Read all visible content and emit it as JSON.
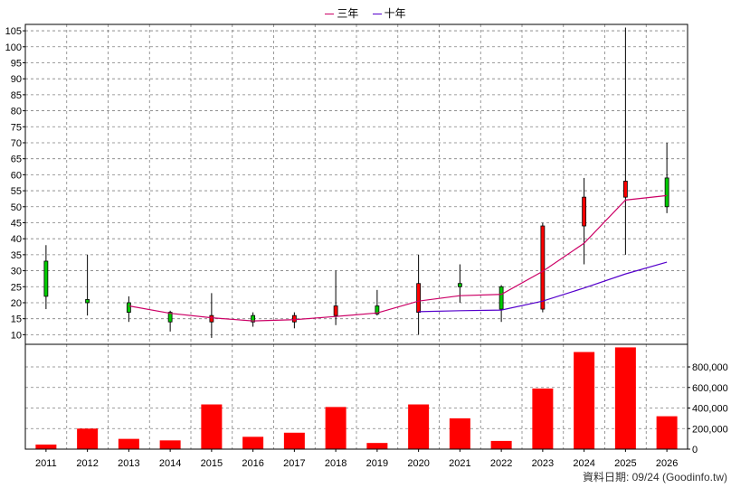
{
  "legend": [
    {
      "name": "三年",
      "color": "#cc0066"
    },
    {
      "name": "十年",
      "color": "#5500cc"
    }
  ],
  "footer": "資料日期: 09/24 (Goodinfo.tw)",
  "colors": {
    "up": "#ff0000",
    "down": "#00cc00",
    "volume": "#ff0000",
    "ma3": "#cc0066",
    "ma10": "#5500cc",
    "grid": "#808080"
  },
  "chart_data": [
    {
      "type": "candlestick",
      "categories": [
        "2011",
        "2012",
        "2013",
        "2014",
        "2015",
        "2016",
        "2017",
        "2018",
        "2019",
        "2020",
        "2021",
        "2022",
        "2023",
        "2024",
        "2025",
        "2026"
      ],
      "y_ticks": [
        10,
        15,
        20,
        25,
        30,
        35,
        40,
        45,
        50,
        55,
        60,
        65,
        70,
        75,
        80,
        85,
        90,
        95,
        100,
        105
      ],
      "ylim": [
        7,
        107
      ],
      "grid": true,
      "candles": [
        {
          "open": 33,
          "high": 38,
          "low": 18,
          "close": 22,
          "color": "green"
        },
        {
          "open": 21,
          "high": 35,
          "low": 16,
          "close": 20,
          "color": "green"
        },
        {
          "open": 20,
          "high": 22,
          "low": 14,
          "close": 17,
          "color": "green"
        },
        {
          "open": 17,
          "high": 17.5,
          "low": 11,
          "close": 14,
          "color": "green"
        },
        {
          "open": 14,
          "high": 23,
          "low": 9,
          "close": 16,
          "color": "red"
        },
        {
          "open": 16,
          "high": 17,
          "low": 12.5,
          "close": 14,
          "color": "green"
        },
        {
          "open": 14,
          "high": 17,
          "low": 12,
          "close": 16,
          "color": "red"
        },
        {
          "open": 16,
          "high": 30,
          "low": 13,
          "close": 19,
          "color": "red"
        },
        {
          "open": 19,
          "high": 24,
          "low": 16,
          "close": 16.5,
          "color": "green"
        },
        {
          "open": 17,
          "high": 35,
          "low": 10,
          "close": 26,
          "color": "red"
        },
        {
          "open": 26,
          "high": 32,
          "low": 20,
          "close": 25,
          "color": "green"
        },
        {
          "open": 25,
          "high": 25.5,
          "low": 14,
          "close": 18,
          "color": "green"
        },
        {
          "open": 18,
          "high": 45,
          "low": 17,
          "close": 44,
          "color": "red"
        },
        {
          "open": 44,
          "high": 59,
          "low": 32,
          "close": 53,
          "color": "red"
        },
        {
          "open": 53,
          "high": 106,
          "low": 35,
          "close": 58,
          "color": "red"
        },
        {
          "open": 59,
          "high": 70,
          "low": 48,
          "close": 50,
          "color": "green"
        }
      ],
      "series": [
        {
          "name": "三年",
          "values": [
            null,
            null,
            19,
            16.7,
            15.3,
            14.3,
            14.7,
            15.7,
            16.8,
            20.5,
            22.2,
            22.6,
            29.8,
            38.6,
            52.1,
            53.5
          ]
        },
        {
          "name": "十年",
          "values": [
            null,
            null,
            null,
            null,
            null,
            null,
            null,
            null,
            null,
            17.2,
            17.5,
            17.7,
            20.5,
            24.6,
            29.0,
            32.7
          ]
        }
      ]
    },
    {
      "type": "bar",
      "categories": [
        "2011",
        "2012",
        "2013",
        "2014",
        "2015",
        "2016",
        "2017",
        "2018",
        "2019",
        "2020",
        "2021",
        "2022",
        "2023",
        "2024",
        "2025",
        "2026"
      ],
      "values": [
        45000,
        200000,
        100000,
        85000,
        435000,
        120000,
        160000,
        410000,
        60000,
        435000,
        300000,
        80000,
        590000,
        945000,
        990000,
        320000
      ],
      "y_ticks": [
        0,
        200000,
        400000,
        600000,
        800000
      ],
      "y_tick_labels": [
        "0",
        "200,000",
        "400,000",
        "600,000",
        "800,000"
      ],
      "ylim": [
        0,
        1020000
      ],
      "grid": true
    }
  ]
}
